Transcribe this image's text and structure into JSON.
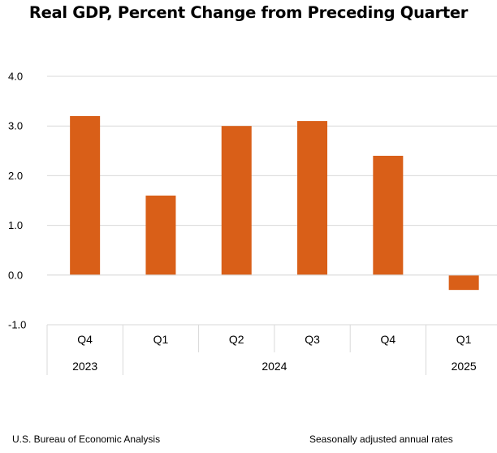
{
  "chart_data": {
    "type": "bar",
    "title": "Real GDP, Percent Change from Preceding Quarter",
    "categories": [
      "Q4",
      "Q1",
      "Q2",
      "Q3",
      "Q4",
      "Q1"
    ],
    "years": [
      {
        "label": "2023",
        "span": 1
      },
      {
        "label": "2024",
        "span": 4
      },
      {
        "label": "2025",
        "span": 1
      }
    ],
    "values": [
      3.2,
      1.6,
      3.0,
      3.1,
      2.4,
      -0.3
    ],
    "ylim": [
      -1.0,
      4.0
    ],
    "yticks": [
      "4.0",
      "3.0",
      "2.0",
      "1.0",
      "0.0",
      "-1.0"
    ],
    "xlabel": "",
    "ylabel": "",
    "grid": true,
    "bar_color": "#d95f18",
    "grid_color": "#d9d9d9"
  },
  "footer": {
    "source": "U.S. Bureau of Economic Analysis",
    "note": "Seasonally adjusted annual rates"
  }
}
